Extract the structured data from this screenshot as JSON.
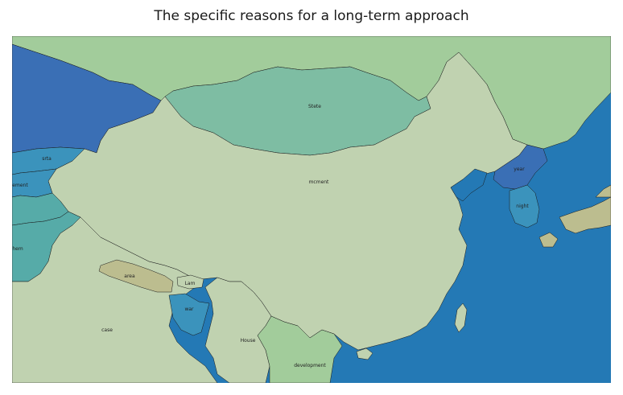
{
  "title": "The specific reasons for a long-term approach",
  "colors": {
    "ocean": "#2479b5",
    "steel_blue": "#3a6fb5",
    "light_green": "#a2cc9b",
    "sage": "#c0d2b0",
    "teal_green": "#7ebda3",
    "teal": "#56aba8",
    "cerulean": "#3b93bc",
    "khaki": "#bcbd8f"
  },
  "regions": [
    {
      "id": "mongolia",
      "label": "Stete",
      "fill": "teal_green"
    },
    {
      "id": "china",
      "label": "mcment",
      "fill": "sage"
    },
    {
      "id": "north-korea",
      "label": "year",
      "fill": "steel_blue"
    },
    {
      "id": "south-korea",
      "label": "night",
      "fill": "cerulean"
    },
    {
      "id": "kazakhstan",
      "label": "",
      "fill": "steel_blue"
    },
    {
      "id": "kyrgyzstan",
      "label": "srta",
      "fill": "cerulean"
    },
    {
      "id": "tajikistan",
      "label": "ement",
      "fill": "cerulean"
    },
    {
      "id": "afghanistan",
      "label": "",
      "fill": "teal"
    },
    {
      "id": "pakistan",
      "label": "hem",
      "fill": "teal"
    },
    {
      "id": "india",
      "label": "case",
      "fill": "sage"
    },
    {
      "id": "nepal",
      "label": "area",
      "fill": "khaki"
    },
    {
      "id": "bhutan",
      "label": "Lam",
      "fill": "sage"
    },
    {
      "id": "bangladesh",
      "label": "war",
      "fill": "cerulean"
    },
    {
      "id": "myanmar",
      "label": "House",
      "fill": "sage"
    },
    {
      "id": "laos",
      "label": "development",
      "fill": "light_green"
    },
    {
      "id": "russia",
      "label": "",
      "fill": "light_green"
    },
    {
      "id": "japan",
      "label": "",
      "fill": "khaki"
    },
    {
      "id": "taiwan",
      "label": "",
      "fill": "sage"
    }
  ]
}
